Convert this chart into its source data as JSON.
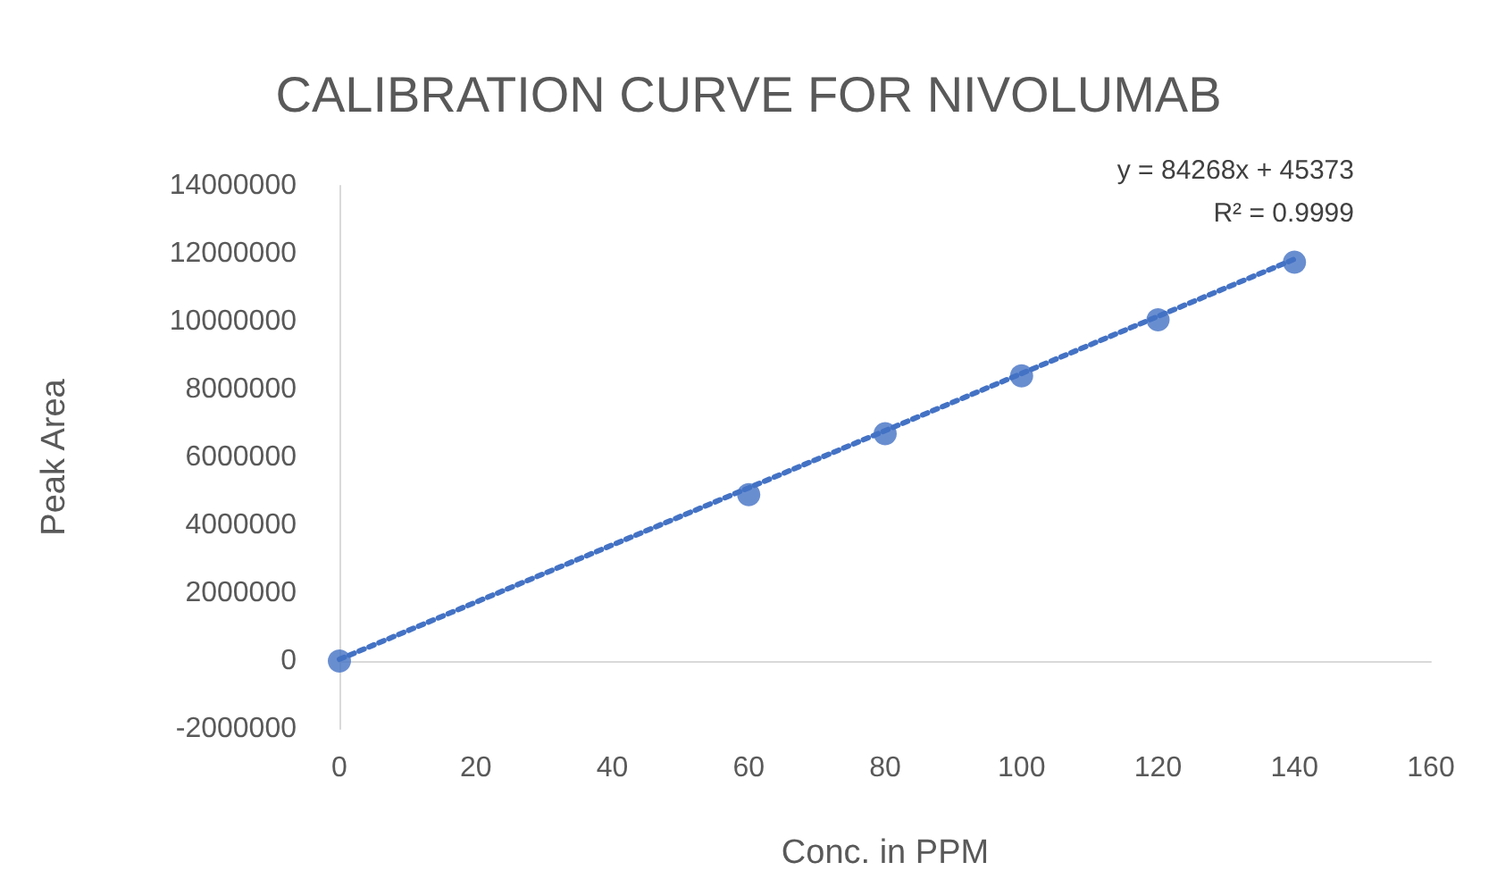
{
  "chart_data": {
    "type": "scatter",
    "title": "CALIBRATION CURVE FOR NIVOLUMAB",
    "xlabel": "Conc. in PPM",
    "ylabel": "Peak Area",
    "annotations": [
      "y = 84268x + 45373",
      "R² = 0.9999"
    ],
    "x": [
      0,
      60,
      80,
      100,
      120,
      140
    ],
    "series": [
      {
        "color": "#4472c4",
        "values": [
          0,
          4900000,
          6700000,
          8400000,
          10050000,
          11750000
        ]
      },
      {
        "type": "line",
        "color": "#4472c4",
        "x": [
          0,
          140
        ],
        "values": [
          50000,
          11840000
        ],
        "line_style": "dotted",
        "marker": "none"
      }
    ],
    "xlim": [
      0,
      160
    ],
    "xticks": [
      0,
      20,
      40,
      60,
      80,
      100,
      120,
      140,
      160
    ],
    "ylim": [
      -2000000,
      14000000
    ],
    "yticks": [
      -2000000,
      0,
      2000000,
      4000000,
      6000000,
      8000000,
      10000000,
      12000000,
      14000000
    ],
    "marker": "circle"
  }
}
